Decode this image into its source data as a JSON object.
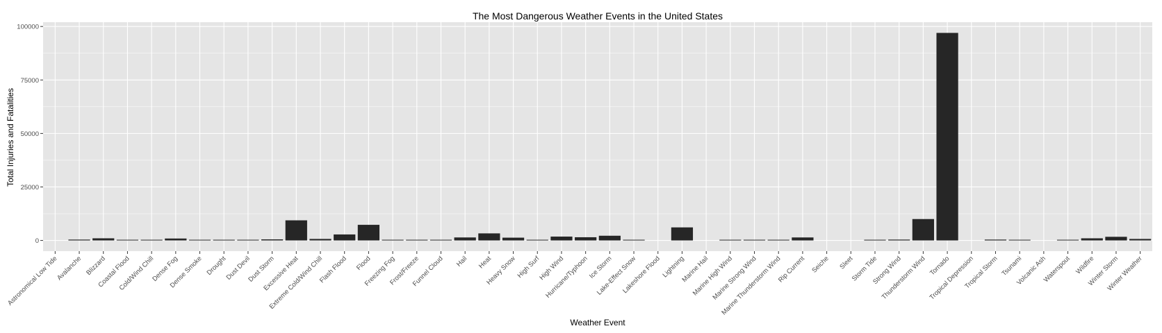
{
  "chart_data": {
    "type": "bar",
    "title": "The Most Dangerous Weather Events in the United States",
    "xlabel": "Weather Event",
    "ylabel": "Total Injuries and Fatalities",
    "ylim": [
      -5000,
      102000
    ],
    "yticks": [
      0,
      25000,
      50000,
      75000,
      100000
    ],
    "grid": true,
    "legend": "none",
    "colors": {
      "panel": "#e5e5e5",
      "grid": "#ffffff",
      "bar": "#262626",
      "tick_text": "#4d4d4d"
    },
    "categories": [
      "Astronomical Low Tide",
      "Avalanche",
      "Blizzard",
      "Coastal Flood",
      "Cold/Wind Chill",
      "Dense Fog",
      "Dense Smoke",
      "Drought",
      "Dust Devil",
      "Dust Storm",
      "Excessive Heat",
      "Extreme Cold/Wind Chill",
      "Flash Flood",
      "Flood",
      "Freezing Fog",
      "Frost/Freeze",
      "Funnel Cloud",
      "Hail",
      "Heat",
      "Heavy Snow",
      "High Surf",
      "High Wind",
      "Hurricane/Typhoon",
      "Ice Storm",
      "Lake-Effect Snow",
      "Lakeshore Flood",
      "Lightning",
      "Marine Hail",
      "Marine High Wind",
      "Marine Strong Wind",
      "Marine Thunderstorm Wind",
      "Rip Current",
      "Seiche",
      "Sleet",
      "Storm Tide",
      "Strong Wind",
      "Thunderstorm Wind",
      "Tornado",
      "Tropical Depression",
      "Tropical Storm",
      "Tsunami",
      "Volcanic Ash",
      "Waterspout",
      "Wildfire",
      "Winter Storm",
      "Winter Weather"
    ],
    "values": [
      0,
      400,
      1000,
      20,
      300,
      900,
      20,
      40,
      50,
      500,
      9400,
      700,
      2800,
      7300,
      20,
      30,
      20,
      1400,
      3300,
      1300,
      300,
      1800,
      1500,
      2200,
      30,
      0,
      6100,
      0,
      40,
      40,
      70,
      1400,
      0,
      0,
      40,
      400,
      10000,
      97000,
      0,
      400,
      150,
      0,
      50,
      1000,
      1700,
      700
    ]
  }
}
